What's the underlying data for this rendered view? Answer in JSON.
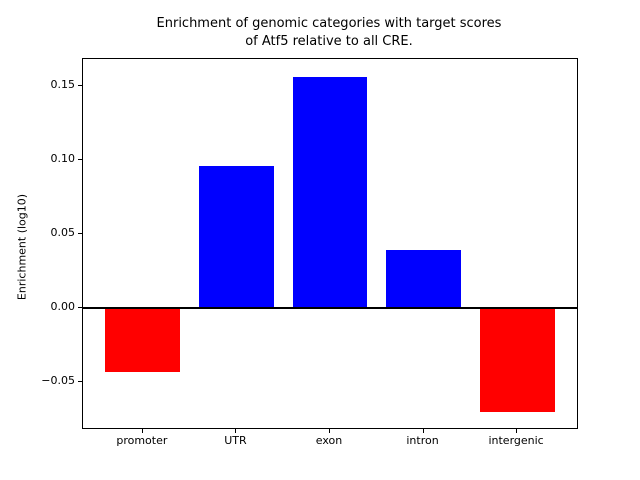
{
  "figure": {
    "title_line1": "Enrichment of genomic categories with target scores",
    "title_line2": "of Atf5 relative to all CRE.",
    "ylabel": "Enrichment (log10)"
  },
  "chart_data": {
    "type": "bar",
    "title": "Enrichment of genomic categories with target scores\nof Atf5 relative to all CRE.",
    "xlabel": "",
    "ylabel": "Enrichment (log10)",
    "categories": [
      "promoter",
      "UTR",
      "exon",
      "intron",
      "intergenic"
    ],
    "values": [
      -0.043,
      0.096,
      0.156,
      0.039,
      -0.07
    ],
    "bar_colors": [
      "#ff0000",
      "#0000ff",
      "#0000ff",
      "#0000ff",
      "#ff0000"
    ],
    "positive_color": "#0000ff",
    "negative_color": "#ff0000",
    "bar_width": 0.8,
    "xlim": [
      -0.64,
      4.64
    ],
    "ylim": [
      -0.081,
      0.168
    ],
    "yticks": [
      -0.05,
      0.0,
      0.05,
      0.1,
      0.15
    ],
    "ytick_labels": [
      "−0.05",
      "0.00",
      "0.05",
      "0.10",
      "0.15"
    ],
    "zero_line": true,
    "grid": false,
    "legend": false,
    "background": "#ffffff",
    "spine_color": "#000000"
  }
}
